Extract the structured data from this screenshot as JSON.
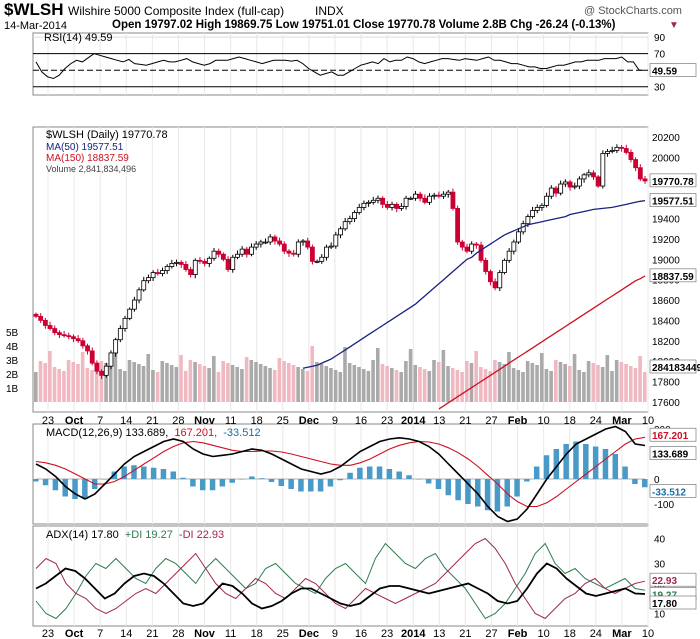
{
  "header": {
    "symbol": "$WLSH",
    "name": "Wilshire 5000 Composite Index (full-cap)",
    "exchange": "INDX",
    "date": "14-Mar-2014",
    "ohlc": "Open 19797.02  High 19869.75  Low 19751.01  Close 19770.78  Volume 2.8B  Chg -26.24 (-0.13%)",
    "chg_marker": "▼",
    "copyright": "@ StockCharts.com"
  },
  "colors": {
    "up": "#000000",
    "down": "#cc0033",
    "ma50": "#1a237e",
    "ma150": "#cc1122",
    "volume_up": "#aaaaaa",
    "volume_down": "#f0b8c0",
    "macd_hist": "#4a9ac8",
    "adx": "#000000",
    "plus_di": "#2e7d4f",
    "minus_di": "#a0284a"
  },
  "x_axis_labels": [
    "23",
    "Oct",
    "7",
    "14",
    "21",
    "28",
    "Nov",
    "11",
    "18",
    "25",
    "Dec",
    "9",
    "16",
    "23",
    "2014",
    "13",
    "21",
    "27",
    "Feb",
    "10",
    "18",
    "24",
    "Mar",
    "10"
  ],
  "rsi": {
    "label": "RSI(14) 49.59",
    "value_tag": "49.59",
    "ticks": [
      "90",
      "70",
      "50",
      "30"
    ]
  },
  "price": {
    "label": "$WLSH (Daily) 19770.78",
    "ma50_label": "MA(50) 19577.51",
    "ma150_label": "MA(150) 18837.59",
    "volume_label": "Volume 2,841,834,496",
    "close_tag": "19770.78",
    "ma50_tag": "19577.51",
    "ma150_tag": "18837.59",
    "volume_tag": "2841834496",
    "ticks": [
      "20200",
      "20000",
      "19800",
      "19600",
      "19400",
      "19200",
      "19000",
      "18800",
      "18600",
      "18400",
      "18200",
      "18000",
      "17800",
      "17600"
    ],
    "volume_ticks": [
      "5B",
      "4B",
      "3B",
      "2B",
      "1B"
    ]
  },
  "macd": {
    "label": "MACD(12,26,9) 133.689, 167.201, -33.512",
    "label_parts": [
      "MACD(12,26,9) 133.689,",
      "167.201,",
      "-33.512"
    ],
    "tags": [
      "167.201",
      "133.689",
      "-33.512"
    ],
    "ticks": [
      "200",
      "100",
      "0",
      "-100"
    ]
  },
  "adx": {
    "label_parts": [
      "ADX(14) 17.80",
      "+DI 19.27",
      "-DI 22.93"
    ],
    "tags": [
      "22.93",
      "19.27",
      "17.80"
    ],
    "ticks": [
      "40",
      "30",
      "20",
      "10"
    ]
  },
  "chart_data": [
    {
      "type": "line",
      "title": "RSI(14) 49.59",
      "ylim": [
        20,
        95
      ],
      "series": [
        {
          "name": "RSI(14)",
          "values": [
            60,
            48,
            42,
            40,
            44,
            52,
            58,
            62,
            60,
            65,
            70,
            68,
            66,
            64,
            62,
            60,
            63,
            58,
            57,
            56,
            58,
            60,
            62,
            60,
            60,
            62,
            64,
            60,
            58,
            56,
            58,
            62,
            62,
            62,
            64,
            66,
            64,
            62,
            60,
            58,
            60,
            62,
            62,
            62,
            61,
            62,
            58,
            52,
            48,
            44,
            46,
            48,
            44,
            44,
            48,
            52,
            56,
            58,
            60,
            58,
            64,
            60,
            62,
            62,
            66,
            64,
            60,
            58,
            60,
            62,
            64,
            64,
            63,
            62,
            64,
            63,
            62,
            64,
            66,
            62,
            62,
            60,
            58,
            58,
            56,
            54,
            54,
            52,
            52,
            54,
            56,
            56,
            58,
            60,
            60,
            62,
            62,
            62,
            64,
            64,
            64,
            66,
            60,
            60,
            50,
            50
          ]
        }
      ]
    },
    {
      "type": "line",
      "title": "$WLSH (Daily) 19770.78",
      "ylim": [
        17500,
        20300
      ],
      "series": [
        {
          "name": "$WLSH (Daily)",
          "values": [
            18440,
            18400,
            18350,
            18320,
            18280,
            18260,
            18250,
            18240,
            18220,
            18200,
            18150,
            18100,
            17980,
            17900,
            17860,
            17950,
            18080,
            18210,
            18320,
            18420,
            18510,
            18600,
            18700,
            18790,
            18820,
            18870,
            18860,
            18890,
            18930,
            18960,
            18970,
            18950,
            18900,
            18850,
            18990,
            18980,
            18960,
            19010,
            19080,
            19050,
            19000,
            18900,
            19020,
            19050,
            19100,
            19050,
            19120,
            19150,
            19170,
            19170,
            19220,
            19180,
            19150,
            19080,
            19060,
            19050,
            19170,
            19180,
            19120,
            18980,
            18980,
            19020,
            19120,
            19130,
            19240,
            19300,
            19370,
            19400,
            19460,
            19510,
            19550,
            19560,
            19580,
            19600,
            19540,
            19510,
            19540,
            19500,
            19520,
            19600,
            19600,
            19640,
            19600,
            19560,
            19620,
            19630,
            19620,
            19640,
            19660,
            19500,
            19170,
            19120,
            19080,
            19150,
            19140,
            18990,
            18880,
            18780,
            18720,
            18870,
            18990,
            19080,
            19170,
            19270,
            19350,
            19420,
            19480,
            19510,
            19530,
            19620,
            19700,
            19650,
            19740,
            19760,
            19710,
            19720,
            19790,
            19830,
            19850,
            19810,
            19720,
            20040,
            20060,
            20070,
            20100,
            20090,
            20050,
            19980,
            19900,
            19790,
            19770
          ]
        },
        {
          "name": "MA(50)",
          "values": [
            17930,
            17940,
            17950,
            17960,
            17980,
            18000,
            18020,
            18050,
            18080,
            18110,
            18140,
            18170,
            18200,
            18230,
            18260,
            18290,
            18320,
            18350,
            18380,
            18410,
            18440,
            18470,
            18500,
            18530,
            18560,
            18600,
            18640,
            18680,
            18720,
            18760,
            18800,
            18840,
            18880,
            18920,
            18960,
            19000,
            19020,
            19060,
            19090,
            19120,
            19150,
            19180,
            19210,
            19240,
            19260,
            19280,
            19300,
            19320,
            19340,
            19350,
            19360,
            19370,
            19380,
            19390,
            19400,
            19410,
            19420,
            19440,
            19450,
            19460,
            19470,
            19480,
            19490,
            19495,
            19500,
            19505,
            19510,
            19520,
            19530,
            19540,
            19550,
            19560,
            19570,
            19577
          ]
        },
        {
          "name": "MA(150)",
          "values": [
            17530,
            17560,
            17590,
            17620,
            17650,
            17680,
            17710,
            17740,
            17770,
            17800,
            17830,
            17860,
            17890,
            17920,
            17950,
            17980,
            18010,
            18040,
            18070,
            18100,
            18130,
            18160,
            18190,
            18220,
            18250,
            18280,
            18310,
            18340,
            18370,
            18400,
            18430,
            18460,
            18490,
            18520,
            18550,
            18580,
            18610,
            18640,
            18670,
            18700,
            18730,
            18760,
            18790,
            18810,
            18837
          ]
        }
      ]
    },
    {
      "type": "line",
      "title": "MACD(12,26,9) 133.689, 167.201, -33.512",
      "ylim": [
        -180,
        220
      ],
      "series": [
        {
          "name": "MACD",
          "values": [
            60,
            40,
            10,
            -30,
            -60,
            -80,
            -60,
            -20,
            20,
            60,
            90,
            110,
            130,
            150,
            160,
            150,
            120,
            100,
            90,
            95,
            100,
            110,
            120,
            115,
            100,
            80,
            60,
            40,
            30,
            20,
            30,
            50,
            80,
            110,
            130,
            150,
            160,
            165,
            160,
            150,
            130,
            100,
            60,
            20,
            -20,
            -60,
            -110,
            -150,
            -170,
            -160,
            -120,
            -60,
            0,
            50,
            100,
            140,
            160,
            180,
            200,
            210,
            190,
            140,
            134
          ]
        },
        {
          "name": "Signal",
          "values": [
            70,
            65,
            55,
            40,
            20,
            0,
            -20,
            -20,
            -10,
            10,
            35,
            60,
            85,
            110,
            130,
            145,
            150,
            145,
            135,
            125,
            115,
            110,
            110,
            112,
            112,
            108,
            100,
            90,
            80,
            70,
            60,
            55,
            55,
            65,
            80,
            100,
            120,
            135,
            145,
            150,
            148,
            140,
            125,
            105,
            80,
            50,
            15,
            -20,
            -60,
            -90,
            -110,
            -110,
            -95,
            -70,
            -40,
            -10,
            20,
            50,
            80,
            110,
            140,
            160,
            167
          ]
        },
        {
          "name": "Histogram",
          "values": [
            -10,
            -25,
            -45,
            -70,
            -80,
            -80,
            -40,
            0,
            30,
            50,
            55,
            50,
            45,
            40,
            30,
            5,
            -30,
            -45,
            -45,
            -30,
            -15,
            0,
            10,
            3,
            -12,
            -28,
            -40,
            -50,
            -50,
            -50,
            -30,
            -5,
            25,
            45,
            50,
            50,
            40,
            30,
            15,
            0,
            -18,
            -40,
            -65,
            -85,
            -100,
            -110,
            -125,
            -130,
            -110,
            -70,
            -10,
            50,
            95,
            120,
            140,
            150,
            140,
            130,
            120,
            100,
            50,
            -20,
            -33
          ]
        }
      ]
    },
    {
      "type": "line",
      "title": "ADX(14) 17.80 +DI 19.27 -DI 22.93",
      "ylim": [
        5,
        45
      ],
      "series": [
        {
          "name": "ADX(14)",
          "values": [
            20,
            22,
            25,
            28,
            27,
            24,
            20,
            16,
            18,
            22,
            25,
            26,
            25,
            22,
            18,
            14,
            13,
            14,
            18,
            22,
            21,
            18,
            14,
            12,
            13,
            15,
            18,
            20,
            20,
            18,
            16,
            14,
            13,
            14,
            17,
            20,
            21,
            21,
            20,
            19,
            18,
            19,
            20,
            21,
            22,
            20,
            18,
            15,
            14,
            15,
            20,
            26,
            30,
            28,
            24,
            21,
            18,
            17,
            18,
            19,
            20,
            18,
            17.8
          ]
        },
        {
          "name": "+DI",
          "values": [
            15,
            10,
            8,
            12,
            18,
            25,
            30,
            28,
            32,
            28,
            24,
            22,
            28,
            32,
            30,
            26,
            22,
            28,
            32,
            28,
            24,
            20,
            22,
            28,
            30,
            26,
            22,
            20,
            18,
            24,
            28,
            30,
            26,
            22,
            32,
            38,
            34,
            30,
            28,
            32,
            34,
            28,
            24,
            20,
            14,
            8,
            10,
            14,
            20,
            26,
            34,
            38,
            30,
            26,
            28,
            24,
            22,
            20,
            22,
            24,
            20,
            19.27
          ]
        },
        {
          "name": "-DI",
          "values": [
            28,
            32,
            30,
            22,
            18,
            16,
            12,
            10,
            12,
            15,
            18,
            20,
            18,
            22,
            26,
            30,
            34,
            28,
            22,
            18,
            16,
            20,
            24,
            22,
            18,
            16,
            20,
            24,
            22,
            18,
            14,
            12,
            16,
            20,
            18,
            16,
            14,
            16,
            18,
            20,
            22,
            26,
            30,
            34,
            38,
            40,
            36,
            30,
            22,
            16,
            10,
            8,
            12,
            16,
            18,
            22,
            24,
            20,
            18,
            20,
            22,
            22.93
          ]
        }
      ]
    }
  ]
}
